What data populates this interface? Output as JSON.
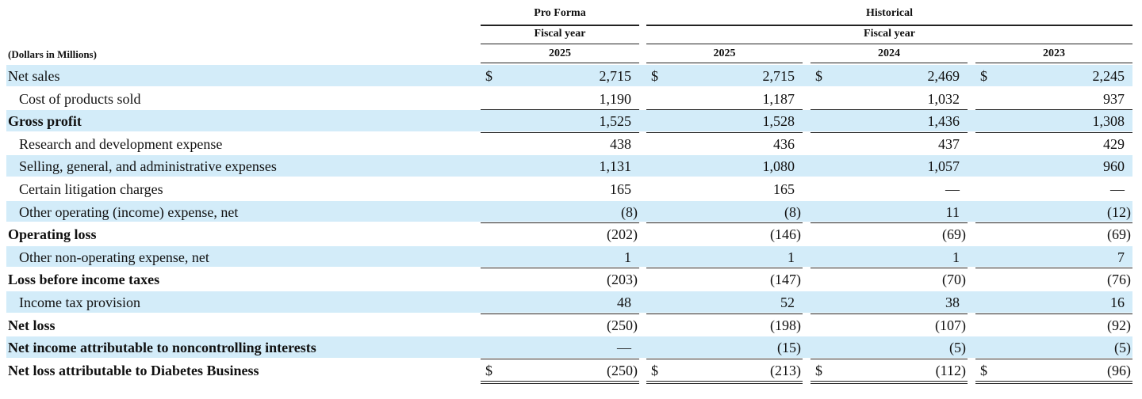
{
  "header": {
    "pro_forma": "Pro Forma",
    "historical": "Historical",
    "fiscal_year": [
      "Fiscal year",
      "Fiscal year"
    ],
    "units": "(Dollars in Millions)",
    "years": [
      "2025",
      "2025",
      "2024",
      "2023"
    ]
  },
  "dollar_sign": "$",
  "table": {
    "rows": [
      {
        "label": "Net sales",
        "indent": false,
        "bold": false,
        "dollar": true,
        "line_above": false,
        "values": [
          "2,715",
          "2,715",
          "2,469",
          "2,245"
        ]
      },
      {
        "label": "Cost of products sold",
        "indent": true,
        "bold": false,
        "dollar": false,
        "line_above": false,
        "values": [
          "1,190",
          "1,187",
          "1,032",
          "937"
        ]
      },
      {
        "label": "Gross profit",
        "indent": false,
        "bold": true,
        "dollar": false,
        "line_above": true,
        "values": [
          "1,525",
          "1,528",
          "1,436",
          "1,308"
        ]
      },
      {
        "label": "Research and development expense",
        "indent": true,
        "bold": false,
        "dollar": false,
        "line_above": true,
        "values": [
          "438",
          "436",
          "437",
          "429"
        ]
      },
      {
        "label": "Selling, general, and administrative expenses",
        "indent": true,
        "bold": false,
        "dollar": false,
        "line_above": false,
        "values": [
          "1,131",
          "1,080",
          "1,057",
          "960"
        ]
      },
      {
        "label": "Certain litigation charges",
        "indent": true,
        "bold": false,
        "dollar": false,
        "line_above": false,
        "values": [
          "165",
          "165",
          "—",
          "—"
        ]
      },
      {
        "label": "Other operating (income) expense, net",
        "indent": true,
        "bold": false,
        "dollar": false,
        "line_above": false,
        "values": [
          "(8)",
          "(8)",
          "11",
          "(12)"
        ]
      },
      {
        "label": "Operating loss",
        "indent": false,
        "bold": true,
        "dollar": false,
        "line_above": true,
        "values": [
          "(202)",
          "(146)",
          "(69)",
          "(69)"
        ]
      },
      {
        "label": "Other non-operating expense, net",
        "indent": true,
        "bold": false,
        "dollar": false,
        "line_above": false,
        "values": [
          "1",
          "1",
          "1",
          "7"
        ]
      },
      {
        "label": "Loss before income taxes",
        "indent": false,
        "bold": true,
        "dollar": false,
        "line_above": true,
        "values": [
          "(203)",
          "(147)",
          "(70)",
          "(76)"
        ]
      },
      {
        "label": "Income tax provision",
        "indent": true,
        "bold": false,
        "dollar": false,
        "line_above": false,
        "values": [
          "48",
          "52",
          "38",
          "16"
        ]
      },
      {
        "label": "Net loss",
        "indent": false,
        "bold": true,
        "dollar": false,
        "line_above": true,
        "values": [
          "(250)",
          "(198)",
          "(107)",
          "(92)"
        ]
      },
      {
        "label": "Net income attributable to noncontrolling interests",
        "indent": false,
        "bold": true,
        "dollar": false,
        "line_above": false,
        "values": [
          "—",
          "(15)",
          "(5)",
          "(5)"
        ]
      },
      {
        "label": "Net loss attributable to Diabetes Business",
        "indent": false,
        "bold": true,
        "dollar": true,
        "line_above": true,
        "values": [
          "(250)",
          "(213)",
          "(112)",
          "(96)"
        ]
      }
    ]
  }
}
